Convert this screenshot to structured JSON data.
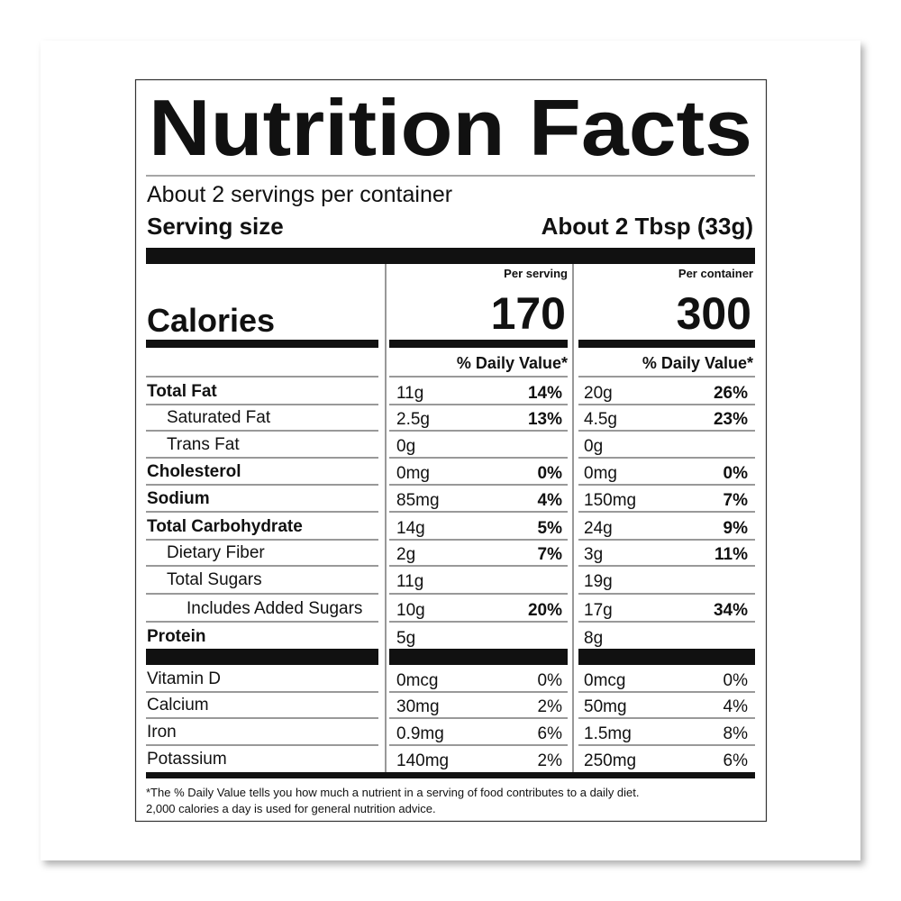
{
  "title": "Nutrition Facts",
  "servings": "About 2 servings per container",
  "serving_size": {
    "label": "Serving size",
    "value": "About 2 Tbsp (33g)"
  },
  "calories_label": "Calories",
  "columns": [
    {
      "heading": "Per serving",
      "calories": 170
    },
    {
      "heading": "Per container",
      "calories": 300
    }
  ],
  "dv_heading": "% Daily Value*",
  "nutrients": [
    {
      "name": "Total Fat",
      "bold": true,
      "level": 0,
      "values": [
        {
          "amount": "11g",
          "dv": "14%"
        },
        {
          "amount": "20g",
          "dv": "26%"
        }
      ]
    },
    {
      "name": "Saturated Fat",
      "bold": false,
      "level": 1,
      "values": [
        {
          "amount": "2.5g",
          "dv": "13%"
        },
        {
          "amount": "4.5g",
          "dv": "23%"
        }
      ]
    },
    {
      "name": "Trans Fat",
      "bold": false,
      "level": 1,
      "values": [
        {
          "amount": "0g"
        },
        {
          "amount": "0g"
        }
      ]
    },
    {
      "name": "Cholesterol",
      "bold": true,
      "level": 0,
      "values": [
        {
          "amount": "0mg",
          "dv": "0%"
        },
        {
          "amount": "0mg",
          "dv": "0%"
        }
      ]
    },
    {
      "name": "Sodium",
      "bold": true,
      "level": 0,
      "values": [
        {
          "amount": "85mg",
          "dv": "4%"
        },
        {
          "amount": "150mg",
          "dv": "7%"
        }
      ]
    },
    {
      "name": "Total Carbohydrate",
      "bold": true,
      "level": 0,
      "values": [
        {
          "amount": "14g",
          "dv": "5%"
        },
        {
          "amount": "24g",
          "dv": "9%"
        }
      ]
    },
    {
      "name": "Dietary Fiber",
      "bold": false,
      "level": 1,
      "values": [
        {
          "amount": "2g",
          "dv": "7%"
        },
        {
          "amount": "3g",
          "dv": "11%"
        }
      ]
    },
    {
      "name": "Total Sugars",
      "bold": false,
      "level": 1,
      "values": [
        {
          "amount": "11g"
        },
        {
          "amount": "19g"
        }
      ]
    },
    {
      "name": "Includes Added Sugars",
      "bold": false,
      "level": 2,
      "values": [
        {
          "amount": "10g",
          "dv": "20%"
        },
        {
          "amount": "17g",
          "dv": "34%"
        }
      ]
    },
    {
      "name": "Protein",
      "bold": true,
      "level": 0,
      "values": [
        {
          "amount": "5g"
        },
        {
          "amount": "8g"
        }
      ]
    }
  ],
  "vitamins": [
    {
      "name": "Vitamin D",
      "values": [
        {
          "amount": "0mcg",
          "dv": "0%"
        },
        {
          "amount": "0mcg",
          "dv": "0%"
        }
      ]
    },
    {
      "name": "Calcium",
      "values": [
        {
          "amount": "30mg",
          "dv": "2%"
        },
        {
          "amount": "50mg",
          "dv": "4%"
        }
      ]
    },
    {
      "name": "Iron",
      "values": [
        {
          "amount": "0.9mg",
          "dv": "6%"
        },
        {
          "amount": "1.5mg",
          "dv": "8%"
        }
      ]
    },
    {
      "name": "Potassium",
      "values": [
        {
          "amount": "140mg",
          "dv": "2%"
        },
        {
          "amount": "250mg",
          "dv": "6%"
        }
      ]
    }
  ],
  "footnote": [
    "*The % Daily Value tells you how much a nutrient in a serving of food contributes to a daily diet.",
    "2,000 calories a day is used for general nutrition advice."
  ]
}
